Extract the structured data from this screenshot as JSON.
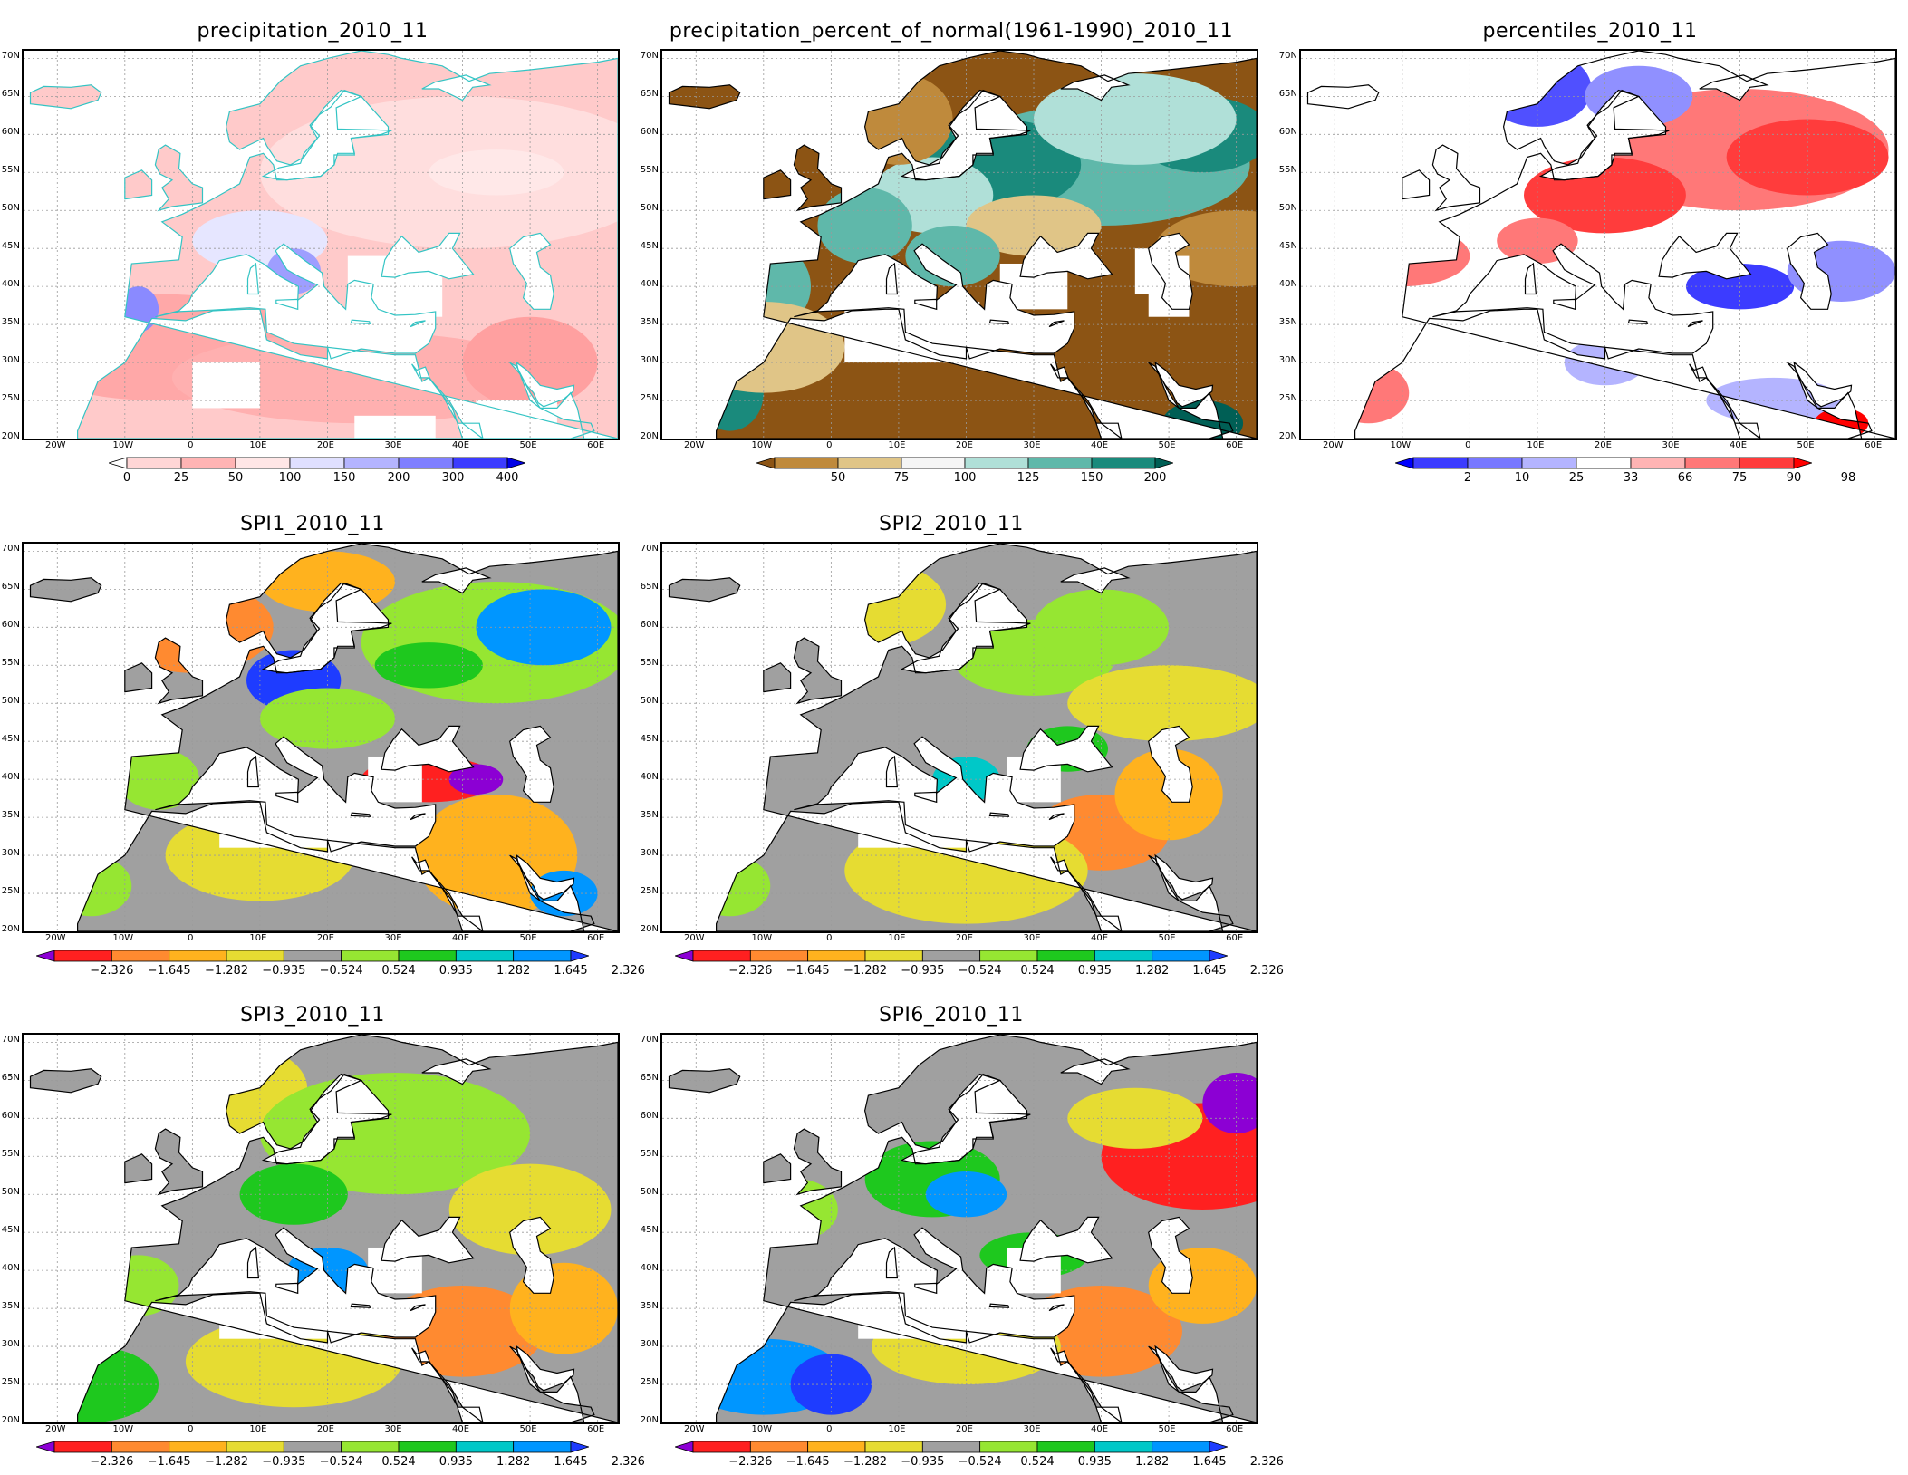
{
  "lat_labels": [
    "70N",
    "65N",
    "60N",
    "55N",
    "50N",
    "45N",
    "40N",
    "35N",
    "30N",
    "25N",
    "20N"
  ],
  "lon_labels": [
    "20W",
    "10W",
    "0",
    "10E",
    "20E",
    "30E",
    "40E",
    "50E",
    "60E"
  ],
  "panels": [
    {
      "id": "precip",
      "title": "precipitation_2010_11",
      "scheme": "precip",
      "coast": "#33c4c4",
      "legend": {
        "labels": [
          "0",
          "25",
          "50",
          "100",
          "150",
          "200",
          "300",
          "400"
        ],
        "colors": [
          "#ffffff",
          "#ffd6d6",
          "#ffb4b4",
          "#ffe6e6",
          "#e0e0ff",
          "#b4b4ff",
          "#7f7fff",
          "#3c3cff",
          "#0000e6"
        ]
      }
    },
    {
      "id": "pct",
      "title": "precipitation_percent_of_normal(1961-1990)_2010_11",
      "scheme": "pct",
      "coast": "#000000",
      "legend": {
        "labels": [
          "50",
          "75",
          "100",
          "125",
          "150",
          "200"
        ],
        "colors": [
          "#8c5414",
          "#bf8a3c",
          "#e0c587",
          "#f5f5f5",
          "#b0e0d8",
          "#5fb8aa",
          "#1a8a7c",
          "#005f55"
        ]
      }
    },
    {
      "id": "percentiles",
      "title": "percentiles_2010_11",
      "scheme": "perc",
      "coast": "#000000",
      "legend": {
        "labels": [
          "2",
          "10",
          "25",
          "33",
          "66",
          "75",
          "90",
          "98"
        ],
        "colors": [
          "#0000ff",
          "#3c3cff",
          "#7878ff",
          "#b4b4ff",
          "#ffffff",
          "#ffb4b4",
          "#ff7878",
          "#ff3c3c",
          "#ff0000"
        ]
      }
    },
    {
      "id": "spi1",
      "title": "SPI1_2010_11",
      "scheme": "spi1",
      "coast": "#000000",
      "legend": {
        "labels": [
          "−2.326",
          "−1.645",
          "−1.282",
          "−0.935",
          "−0.524",
          "0.524",
          "0.935",
          "1.282",
          "1.645",
          "2.326"
        ],
        "colors": [
          "#8c00d4",
          "#ff2020",
          "#ff8a30",
          "#ffb21e",
          "#e6dc32",
          "#a0a0a0",
          "#96e632",
          "#1ec81e",
          "#00c8c8",
          "#0096ff",
          "#1e3cff"
        ]
      }
    },
    {
      "id": "spi2",
      "title": "SPI2_2010_11",
      "scheme": "spi2",
      "coast": "#000000",
      "legend": {
        "labels": [
          "−2.326",
          "−1.645",
          "−1.282",
          "−0.935",
          "−0.524",
          "0.524",
          "0.935",
          "1.282",
          "1.645",
          "2.326"
        ],
        "colors": [
          "#8c00d4",
          "#ff2020",
          "#ff8a30",
          "#ffb21e",
          "#e6dc32",
          "#a0a0a0",
          "#96e632",
          "#1ec81e",
          "#00c8c8",
          "#0096ff",
          "#1e3cff"
        ]
      }
    },
    {
      "id": "spi3",
      "title": "SPI3_2010_11",
      "scheme": "spi3",
      "coast": "#000000",
      "legend": {
        "labels": [
          "−2.326",
          "−1.645",
          "−1.282",
          "−0.935",
          "−0.524",
          "0.524",
          "0.935",
          "1.282",
          "1.645",
          "2.326"
        ],
        "colors": [
          "#8c00d4",
          "#ff2020",
          "#ff8a30",
          "#ffb21e",
          "#e6dc32",
          "#a0a0a0",
          "#96e632",
          "#1ec81e",
          "#00c8c8",
          "#0096ff",
          "#1e3cff"
        ]
      }
    },
    {
      "id": "spi6",
      "title": "SPI6_2010_11",
      "scheme": "spi6",
      "coast": "#000000",
      "legend": {
        "labels": [
          "−2.326",
          "−1.645",
          "−1.282",
          "−0.935",
          "−0.524",
          "0.524",
          "0.935",
          "1.282",
          "1.645",
          "2.326"
        ],
        "colors": [
          "#8c00d4",
          "#ff2020",
          "#ff8a30",
          "#ffb21e",
          "#e6dc32",
          "#a0a0a0",
          "#96e632",
          "#1ec81e",
          "#00c8c8",
          "#0096ff",
          "#1e3cff"
        ]
      }
    }
  ]
}
